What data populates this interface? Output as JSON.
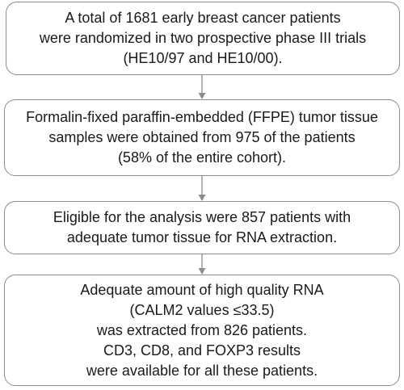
{
  "steps": [
    {
      "lines": [
        "A total of 1681 early breast cancer patients",
        "were randomized in two prospective phase III trials",
        "(HE10/97 and HE10/00)."
      ]
    },
    {
      "lines": [
        "Formalin-fixed paraffin-embedded (FFPE) tumor tissue",
        "samples were obtained from 975 of the patients",
        "(58% of the entire cohort)."
      ]
    },
    {
      "lines": [
        "Eligible for the analysis were 857 patients with",
        "adequate tumor tissue for RNA extraction."
      ]
    },
    {
      "lines": [
        "Adequate amount of high quality RNA",
        "(CALM2 values ≤33.5)",
        "was extracted from 826 patients.",
        "CD3, CD8, and FOXP3 results",
        "were available for all these patients."
      ]
    }
  ],
  "colors": {
    "border": "#8c8c8c",
    "arrow": "#8c8c8c",
    "text": "#1a1a1a"
  }
}
